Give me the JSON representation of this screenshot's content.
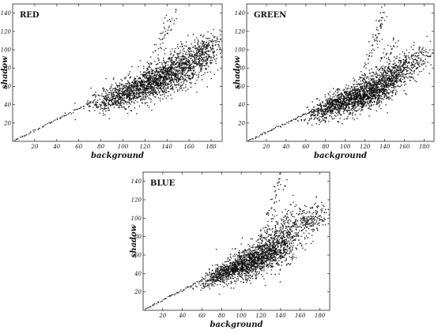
{
  "chart_data": [
    {
      "type": "scatter",
      "title": "RED",
      "xlabel": "background",
      "ylabel": "shadow",
      "xlim": [
        0,
        190
      ],
      "ylim": [
        0,
        150
      ],
      "xticks": [
        20,
        40,
        60,
        80,
        100,
        120,
        140,
        160,
        180
      ],
      "yticks": [
        20,
        40,
        60,
        80,
        100,
        120,
        140
      ],
      "grid": false,
      "clusters": [
        {
          "kind": "diagonal",
          "x0": 2,
          "x1": 75,
          "slope": 0.6,
          "offset": 0,
          "n": 60
        },
        {
          "kind": "blob",
          "cx": 100,
          "cy": 52,
          "sx": 15,
          "sy": 7,
          "n": 650
        },
        {
          "kind": "blob",
          "cx": 132,
          "cy": 66,
          "sx": 15,
          "sy": 9,
          "n": 950
        },
        {
          "kind": "blob",
          "cx": 160,
          "cy": 84,
          "sx": 12,
          "sy": 11,
          "n": 450
        },
        {
          "kind": "blob",
          "cx": 175,
          "cy": 100,
          "sx": 9,
          "sy": 8,
          "n": 220
        },
        {
          "kind": "strand",
          "x0": 120,
          "y0": 70,
          "x1": 148,
          "y1": 145,
          "n": 70
        },
        {
          "kind": "strand",
          "x0": 130,
          "y0": 62,
          "x1": 155,
          "y1": 110,
          "n": 60
        }
      ]
    },
    {
      "type": "scatter",
      "title": "GREEN",
      "xlabel": "background",
      "ylabel": "shadow",
      "xlim": [
        0,
        190
      ],
      "ylim": [
        0,
        150
      ],
      "xticks": [
        20,
        40,
        60,
        80,
        100,
        120,
        140,
        160,
        180
      ],
      "yticks": [
        20,
        40,
        60,
        80,
        100,
        120,
        140
      ],
      "grid": false,
      "clusters": [
        {
          "kind": "diagonal",
          "x0": 2,
          "x1": 68,
          "slope": 0.5,
          "offset": 0,
          "n": 55
        },
        {
          "kind": "blob",
          "cx": 88,
          "cy": 40,
          "sx": 13,
          "sy": 6,
          "n": 600
        },
        {
          "kind": "blob",
          "cx": 118,
          "cy": 50,
          "sx": 14,
          "sy": 8,
          "n": 950
        },
        {
          "kind": "blob",
          "cx": 143,
          "cy": 66,
          "sx": 11,
          "sy": 10,
          "n": 450
        },
        {
          "kind": "blob",
          "cx": 165,
          "cy": 85,
          "sx": 12,
          "sy": 8,
          "n": 260
        },
        {
          "kind": "strand",
          "x0": 115,
          "y0": 60,
          "x1": 139,
          "y1": 142,
          "n": 80
        },
        {
          "kind": "strand",
          "x0": 125,
          "y0": 58,
          "x1": 150,
          "y1": 110,
          "n": 60
        }
      ]
    },
    {
      "type": "scatter",
      "title": "BLUE",
      "xlabel": "background",
      "ylabel": "shadow",
      "xlim": [
        0,
        190
      ],
      "ylim": [
        0,
        150
      ],
      "xticks": [
        20,
        40,
        60,
        80,
        100,
        120,
        140,
        160,
        180
      ],
      "yticks": [
        20,
        40,
        60,
        80,
        100,
        120,
        140
      ],
      "grid": false,
      "clusters": [
        {
          "kind": "diagonal",
          "x0": 2,
          "x1": 65,
          "slope": 0.55,
          "offset": 0,
          "n": 55
        },
        {
          "kind": "blob",
          "cx": 85,
          "cy": 42,
          "sx": 12,
          "sy": 5,
          "n": 600
        },
        {
          "kind": "blob",
          "cx": 112,
          "cy": 54,
          "sx": 13,
          "sy": 9,
          "n": 950
        },
        {
          "kind": "blob",
          "cx": 138,
          "cy": 68,
          "sx": 11,
          "sy": 11,
          "n": 450
        },
        {
          "kind": "blob",
          "cx": 165,
          "cy": 96,
          "sx": 13,
          "sy": 8,
          "n": 280
        },
        {
          "kind": "strand",
          "x0": 120,
          "y0": 70,
          "x1": 142,
          "y1": 145,
          "n": 70
        },
        {
          "kind": "strand",
          "x0": 128,
          "y0": 62,
          "x1": 152,
          "y1": 118,
          "n": 60
        }
      ]
    }
  ]
}
